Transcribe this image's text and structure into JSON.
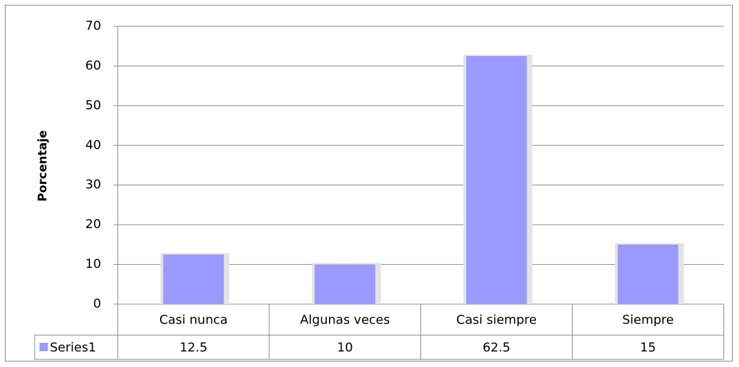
{
  "chart_data": {
    "type": "bar",
    "y_label": "Porcentaje",
    "categories": [
      "Casi nunca",
      "Algunas veces",
      "Casi siempre",
      "Siempre"
    ],
    "series": [
      {
        "name": "Series1",
        "color": "#9999ff",
        "values": [
          12.5,
          10,
          62.5,
          15
        ]
      }
    ],
    "ylim": [
      0,
      70
    ],
    "yticks": [
      0,
      10,
      20,
      30,
      40,
      50,
      60,
      70
    ],
    "grid": true
  }
}
